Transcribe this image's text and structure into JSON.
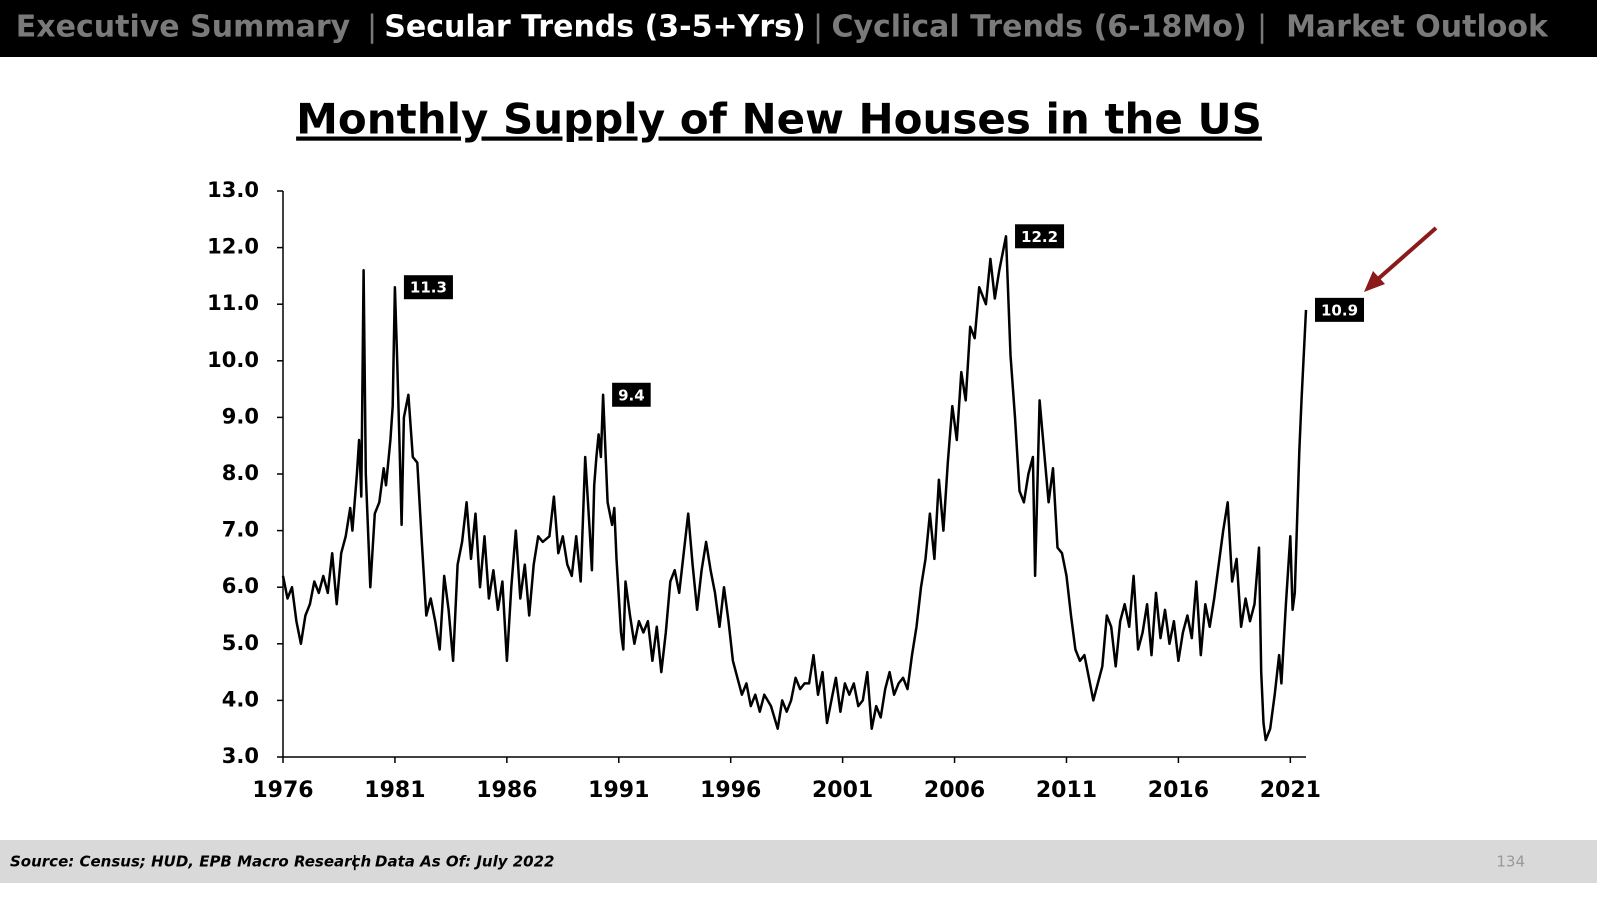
{
  "header": {
    "tabs": [
      "Executive Summary",
      "Secular Trends (3-5+Yrs)",
      "Cyclical Trends (6-18Mo)",
      "Market Outlook"
    ],
    "active_tab": 1,
    "separator": "|"
  },
  "chart_data": {
    "type": "line",
    "title": "Monthly Supply of New Houses in the US",
    "color": "#000000",
    "xlim": [
      1976,
      2021.7
    ],
    "xticks": [
      1976,
      1981,
      1986,
      1991,
      1996,
      2001,
      2006,
      2011,
      2016,
      2021
    ],
    "ylim": [
      3,
      13
    ],
    "yticks": [
      {
        "value": 3,
        "label": "3.0"
      },
      {
        "value": 4,
        "label": "4.0"
      },
      {
        "value": 5,
        "label": "5.0"
      },
      {
        "value": 6,
        "label": "6.0"
      },
      {
        "value": 7,
        "label": "7.0"
      },
      {
        "value": 8,
        "label": "8.0"
      },
      {
        "value": 9,
        "label": "9.0"
      },
      {
        "value": 10,
        "label": "10.0"
      },
      {
        "value": 11,
        "label": "11.0"
      },
      {
        "value": 12,
        "label": "12.0"
      },
      {
        "value": 13,
        "label": "13.0"
      }
    ],
    "x": [
      1976.0,
      1976.2,
      1976.4,
      1976.6,
      1976.8,
      1977.0,
      1977.2,
      1977.4,
      1977.6,
      1977.8,
      1978.0,
      1978.2,
      1978.4,
      1978.6,
      1978.8,
      1979.0,
      1979.1,
      1979.3,
      1979.4,
      1979.5,
      1979.6,
      1979.7,
      1979.9,
      1980.1,
      1980.3,
      1980.5,
      1980.6,
      1980.8,
      1980.9,
      1981.0,
      1981.1,
      1981.2,
      1981.3,
      1981.4,
      1981.6,
      1981.8,
      1982.0,
      1982.2,
      1982.4,
      1982.6,
      1982.8,
      1983.0,
      1983.2,
      1983.4,
      1983.6,
      1983.8,
      1984.0,
      1984.2,
      1984.4,
      1984.6,
      1984.8,
      1985.0,
      1985.2,
      1985.4,
      1985.6,
      1985.8,
      1986.0,
      1986.2,
      1986.4,
      1986.6,
      1986.8,
      1987.0,
      1987.2,
      1987.4,
      1987.6,
      1987.9,
      1988.1,
      1988.3,
      1988.5,
      1988.7,
      1988.9,
      1989.1,
      1989.3,
      1989.5,
      1989.7,
      1989.8,
      1989.9,
      1990.0,
      1990.1,
      1990.2,
      1990.3,
      1990.5,
      1990.7,
      1990.8,
      1990.9,
      1991.1,
      1991.2,
      1991.3,
      1991.5,
      1991.7,
      1991.9,
      1992.1,
      1992.3,
      1992.5,
      1992.7,
      1992.9,
      1993.1,
      1993.3,
      1993.5,
      1993.7,
      1993.9,
      1994.1,
      1994.3,
      1994.5,
      1994.7,
      1994.9,
      1995.1,
      1995.3,
      1995.5,
      1995.7,
      1995.9,
      1996.1,
      1996.3,
      1996.5,
      1996.7,
      1996.9,
      1997.1,
      1997.3,
      1997.5,
      1997.8,
      1998.1,
      1998.3,
      1998.5,
      1998.7,
      1998.9,
      1999.1,
      1999.3,
      1999.5,
      1999.7,
      1999.9,
      2000.1,
      2000.3,
      2000.5,
      2000.7,
      2000.9,
      2001.1,
      2001.3,
      2001.5,
      2001.7,
      2001.9,
      2002.1,
      2002.3,
      2002.5,
      2002.7,
      2002.9,
      2003.1,
      2003.3,
      2003.5,
      2003.7,
      2003.9,
      2004.1,
      2004.3,
      2004.5,
      2004.7,
      2004.9,
      2005.1,
      2005.3,
      2005.5,
      2005.7,
      2005.9,
      2006.1,
      2006.3,
      2006.5,
      2006.7,
      2006.9,
      2007.1,
      2007.4,
      2007.6,
      2007.8,
      2008.0,
      2008.3,
      2008.5,
      2008.7,
      2008.9,
      2009.1,
      2009.3,
      2009.5,
      2009.6,
      2009.8,
      2010.0,
      2010.2,
      2010.4,
      2010.6,
      2010.8,
      2011.0,
      2011.2,
      2011.4,
      2011.6,
      2011.8,
      2012.0,
      2012.2,
      2012.4,
      2012.6,
      2012.8,
      2013.0,
      2013.2,
      2013.4,
      2013.6,
      2013.8,
      2014.0,
      2014.2,
      2014.4,
      2014.6,
      2014.8,
      2015.0,
      2015.2,
      2015.4,
      2015.6,
      2015.8,
      2016.0,
      2016.2,
      2016.4,
      2016.6,
      2016.8,
      2017.0,
      2017.2,
      2017.4,
      2017.6,
      2017.8,
      2018.0,
      2018.2,
      2018.4,
      2018.6,
      2018.8,
      2019.0,
      2019.2,
      2019.4,
      2019.6,
      2019.7,
      2019.8,
      2019.9,
      2020.1,
      2020.3,
      2020.5,
      2020.6,
      2020.8,
      2020.9,
      2021.0,
      2021.1,
      2021.2,
      2021.4,
      2021.5,
      2021.7
    ],
    "values": [
      6.2,
      5.8,
      6.0,
      5.4,
      5.0,
      5.5,
      5.7,
      6.1,
      5.9,
      6.2,
      5.9,
      6.6,
      5.7,
      6.6,
      6.9,
      7.4,
      7.0,
      8.0,
      8.6,
      7.6,
      11.6,
      8.0,
      6.0,
      7.3,
      7.5,
      8.1,
      7.8,
      8.6,
      9.2,
      11.3,
      10.0,
      8.6,
      7.1,
      9.0,
      9.4,
      8.3,
      8.2,
      6.8,
      5.5,
      5.8,
      5.4,
      4.9,
      6.2,
      5.6,
      4.7,
      6.4,
      6.8,
      7.5,
      6.5,
      7.3,
      6.0,
      6.9,
      5.8,
      6.3,
      5.6,
      6.1,
      4.7,
      6.0,
      7.0,
      5.8,
      6.4,
      5.5,
      6.4,
      6.9,
      6.8,
      6.9,
      7.6,
      6.6,
      6.9,
      6.4,
      6.2,
      6.9,
      6.1,
      8.3,
      7.0,
      6.3,
      7.8,
      8.3,
      8.7,
      8.3,
      9.4,
      7.5,
      7.1,
      7.4,
      6.5,
      5.2,
      4.9,
      6.1,
      5.5,
      5.0,
      5.4,
      5.2,
      5.4,
      4.7,
      5.3,
      4.5,
      5.2,
      6.1,
      6.3,
      5.9,
      6.6,
      7.3,
      6.4,
      5.6,
      6.3,
      6.8,
      6.3,
      5.9,
      5.3,
      6.0,
      5.4,
      4.7,
      4.4,
      4.1,
      4.3,
      3.9,
      4.1,
      3.8,
      4.1,
      3.9,
      3.5,
      4.0,
      3.8,
      4.0,
      4.4,
      4.2,
      4.3,
      4.3,
      4.8,
      4.1,
      4.5,
      3.6,
      4.0,
      4.4,
      3.8,
      4.3,
      4.1,
      4.3,
      3.9,
      4.0,
      4.5,
      3.5,
      3.9,
      3.7,
      4.2,
      4.5,
      4.1,
      4.3,
      4.4,
      4.2,
      4.8,
      5.3,
      6.0,
      6.5,
      7.3,
      6.5,
      7.9,
      7.0,
      8.2,
      9.2,
      8.6,
      9.8,
      9.3,
      10.6,
      10.4,
      11.3,
      11.0,
      11.8,
      11.1,
      11.6,
      12.2,
      10.1,
      9.0,
      7.7,
      7.5,
      8.0,
      8.3,
      6.2,
      9.3,
      8.4,
      7.5,
      8.1,
      6.7,
      6.6,
      6.2,
      5.5,
      4.9,
      4.7,
      4.8,
      4.4,
      4.0,
      4.3,
      4.6,
      5.5,
      5.3,
      4.6,
      5.4,
      5.7,
      5.3,
      6.2,
      4.9,
      5.2,
      5.7,
      4.8,
      5.9,
      5.1,
      5.6,
      5.0,
      5.4,
      4.7,
      5.2,
      5.5,
      5.1,
      6.1,
      4.8,
      5.7,
      5.3,
      5.8,
      6.4,
      7.0,
      7.5,
      6.1,
      6.5,
      5.3,
      5.8,
      5.4,
      5.7,
      6.7,
      4.5,
      3.6,
      3.3,
      3.5,
      4.1,
      4.8,
      4.3,
      5.7,
      6.3,
      6.9,
      5.6,
      5.9,
      8.4,
      9.3,
      10.9
    ],
    "annotations": [
      {
        "x": 1981.0,
        "value": 11.3
      },
      {
        "x": 1990.3,
        "value": 9.4
      },
      {
        "x": 2008.3,
        "value": 12.2
      },
      {
        "x": 2021.7,
        "value": 10.9
      }
    ]
  },
  "footer": {
    "source": "Source: Census; HUD, EPB Macro Research",
    "separator": "|",
    "as_of": "Data As Of: July 2022",
    "page": "134"
  }
}
